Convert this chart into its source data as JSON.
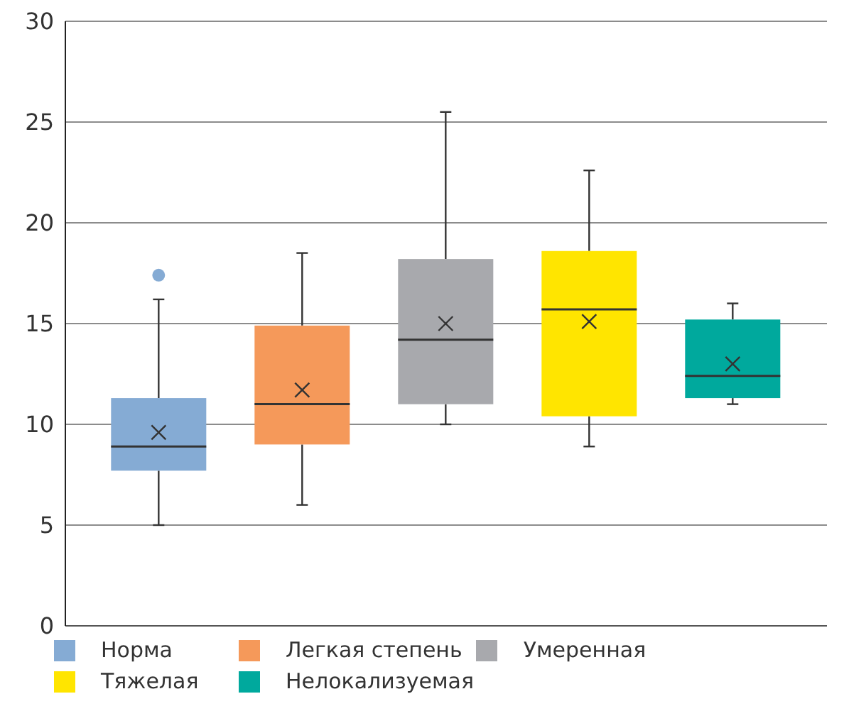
{
  "chart_data": {
    "type": "box",
    "categories": [
      null
    ],
    "series": [
      {
        "name": "Норма",
        "color": "#85abd4",
        "boxes": [
          {
            "low": 5.0,
            "q1": 7.7,
            "median": 8.9,
            "q3": 11.3,
            "high": 16.2,
            "mean": 9.6,
            "outliers": [
              17.4
            ]
          }
        ]
      },
      {
        "name": "Легкая степень",
        "color": "#f5995a",
        "boxes": [
          {
            "low": 6.0,
            "q1": 9.0,
            "median": 11.0,
            "q3": 14.9,
            "high": 18.5,
            "mean": 11.7
          }
        ]
      },
      {
        "name": "Умеренная",
        "color": "#a8a9ad",
        "boxes": [
          {
            "low": 10.0,
            "q1": 11.0,
            "median": 14.2,
            "q3": 18.2,
            "high": 25.5,
            "mean": 15.0
          }
        ]
      },
      {
        "name": "Тяжелая",
        "color": "#ffe500",
        "boxes": [
          {
            "low": 8.9,
            "q1": 10.4,
            "median": 15.7,
            "q3": 18.6,
            "high": 22.6,
            "mean": 15.1
          }
        ]
      },
      {
        "name": "Нелокализуемая",
        "color": "#00a99d",
        "boxes": [
          {
            "low": 11.0,
            "q1": 11.3,
            "median": 12.4,
            "q3": 15.2,
            "high": 16.0,
            "mean": 13.0
          }
        ]
      }
    ],
    "ylim": [
      0,
      30
    ],
    "yticks": [
      0,
      5,
      10,
      15,
      20,
      25,
      30
    ],
    "grid": "y",
    "legend": "bottom",
    "marker": "cross"
  }
}
